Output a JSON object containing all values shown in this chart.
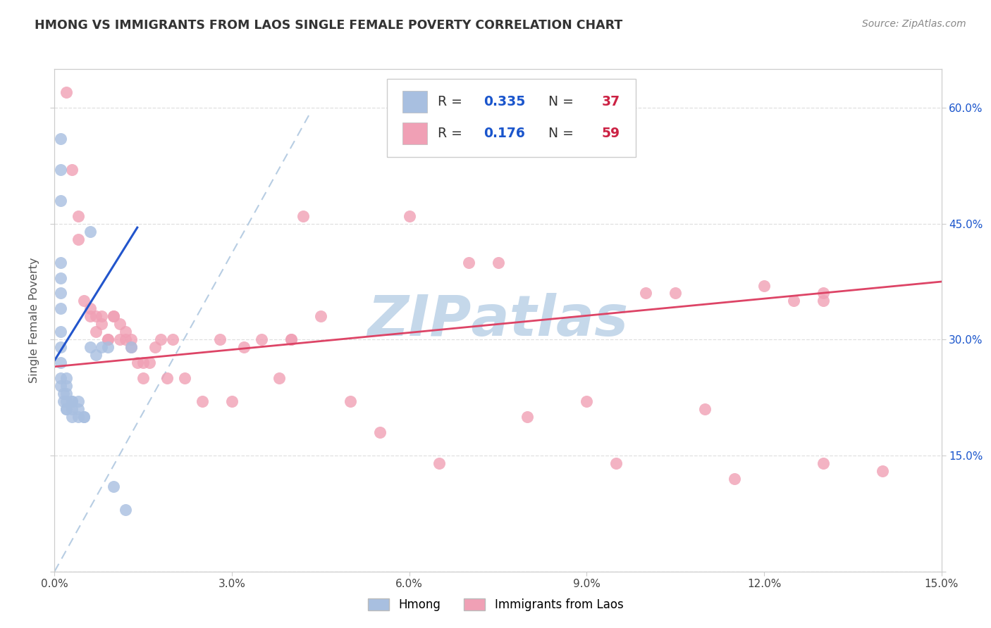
{
  "title": "HMONG VS IMMIGRANTS FROM LAOS SINGLE FEMALE POVERTY CORRELATION CHART",
  "source": "Source: ZipAtlas.com",
  "ylabel": "Single Female Poverty",
  "xlim": [
    0.0,
    0.15
  ],
  "ylim": [
    0.0,
    0.65
  ],
  "background_color": "#ffffff",
  "grid_color": "#e0e0e0",
  "watermark_text": "ZIP​atlas",
  "watermark_color": "#c5d8ea",
  "hmong_color": "#a8bfe0",
  "laos_color": "#f0a0b5",
  "hmong_R": 0.335,
  "hmong_N": 37,
  "laos_R": 0.176,
  "laos_N": 59,
  "hmong_line_color": "#2255cc",
  "laos_line_color": "#dd4466",
  "diag_line_color": "#b0c8e0",
  "R_text_color": "#1a55cc",
  "N_text_color": "#cc2244",
  "hmong_x": [
    0.001,
    0.001,
    0.001,
    0.001,
    0.001,
    0.001,
    0.001,
    0.001,
    0.001,
    0.001,
    0.001,
    0.001,
    0.0015,
    0.0015,
    0.002,
    0.002,
    0.002,
    0.002,
    0.002,
    0.002,
    0.003,
    0.003,
    0.003,
    0.003,
    0.004,
    0.004,
    0.004,
    0.005,
    0.005,
    0.006,
    0.006,
    0.007,
    0.008,
    0.009,
    0.01,
    0.012,
    0.013
  ],
  "hmong_y": [
    0.56,
    0.52,
    0.48,
    0.4,
    0.38,
    0.36,
    0.34,
    0.31,
    0.29,
    0.27,
    0.25,
    0.24,
    0.23,
    0.22,
    0.25,
    0.24,
    0.23,
    0.22,
    0.21,
    0.21,
    0.22,
    0.22,
    0.21,
    0.2,
    0.22,
    0.21,
    0.2,
    0.2,
    0.2,
    0.29,
    0.44,
    0.28,
    0.29,
    0.29,
    0.11,
    0.08,
    0.29
  ],
  "laos_x": [
    0.002,
    0.003,
    0.004,
    0.004,
    0.005,
    0.006,
    0.006,
    0.007,
    0.007,
    0.008,
    0.008,
    0.009,
    0.009,
    0.01,
    0.01,
    0.011,
    0.011,
    0.012,
    0.012,
    0.013,
    0.013,
    0.014,
    0.015,
    0.015,
    0.016,
    0.017,
    0.018,
    0.019,
    0.02,
    0.022,
    0.025,
    0.028,
    0.03,
    0.032,
    0.035,
    0.038,
    0.04,
    0.04,
    0.042,
    0.045,
    0.05,
    0.055,
    0.06,
    0.065,
    0.07,
    0.075,
    0.08,
    0.09,
    0.095,
    0.1,
    0.105,
    0.11,
    0.115,
    0.12,
    0.125,
    0.13,
    0.13,
    0.13,
    0.14
  ],
  "laos_y": [
    0.62,
    0.52,
    0.46,
    0.43,
    0.35,
    0.34,
    0.33,
    0.33,
    0.31,
    0.33,
    0.32,
    0.3,
    0.3,
    0.33,
    0.33,
    0.32,
    0.3,
    0.31,
    0.3,
    0.3,
    0.29,
    0.27,
    0.27,
    0.25,
    0.27,
    0.29,
    0.3,
    0.25,
    0.3,
    0.25,
    0.22,
    0.3,
    0.22,
    0.29,
    0.3,
    0.25,
    0.3,
    0.3,
    0.46,
    0.33,
    0.22,
    0.18,
    0.46,
    0.14,
    0.4,
    0.4,
    0.2,
    0.22,
    0.14,
    0.36,
    0.36,
    0.21,
    0.12,
    0.37,
    0.35,
    0.36,
    0.35,
    0.14,
    0.13
  ],
  "hmong_line_x0": 0.0,
  "hmong_line_x1": 0.014,
  "hmong_line_y0": 0.273,
  "hmong_line_y1": 0.445,
  "laos_line_x0": 0.0,
  "laos_line_x1": 0.15,
  "laos_line_y0": 0.265,
  "laos_line_y1": 0.375,
  "diag_line_x0": 0.0,
  "diag_line_x1": 0.043,
  "diag_line_y0": 0.0,
  "diag_line_y1": 0.59
}
